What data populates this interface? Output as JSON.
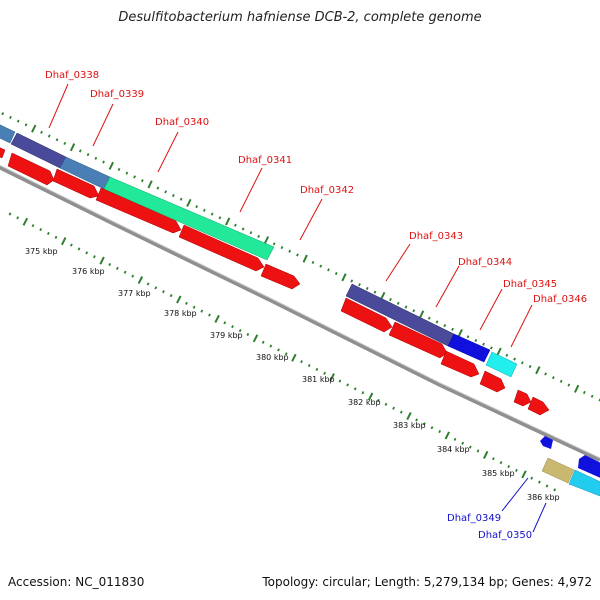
{
  "title": "Desulfitobacterium hafniense DCB-2, complete genome",
  "footer": {
    "accession": "Accession: NC_011830",
    "topology": "Topology: circular; Length: 5,279,134 bp; Genes: 4,972"
  },
  "colors": {
    "backbone": "#8c8c8c",
    "tick": "#2f7f2f",
    "red_gene": "#ee1111",
    "red_label": "#dd1111",
    "blue_label": "#1111cc"
  },
  "scale": {
    "tick_labels": [
      "375 kbp",
      "376 kbp",
      "377 kbp",
      "378 kbp",
      "379 kbp",
      "380 kbp",
      "381 kbp",
      "382 kbp",
      "383 kbp",
      "384 kbp",
      "385 kbp",
      "386 kbp"
    ]
  },
  "gene_labels": [
    {
      "id": "Dhaf_0338",
      "color": "red"
    },
    {
      "id": "Dhaf_0339",
      "color": "red"
    },
    {
      "id": "Dhaf_0340",
      "color": "red"
    },
    {
      "id": "Dhaf_0341",
      "color": "red"
    },
    {
      "id": "Dhaf_0342",
      "color": "red"
    },
    {
      "id": "Dhaf_0343",
      "color": "red"
    },
    {
      "id": "Dhaf_0344",
      "color": "red"
    },
    {
      "id": "Dhaf_0345",
      "color": "red"
    },
    {
      "id": "Dhaf_0346",
      "color": "red"
    },
    {
      "id": "Dhaf_0349",
      "color": "blue"
    },
    {
      "id": "Dhaf_0350",
      "color": "blue"
    }
  ],
  "track_colors": {
    "Dhaf_0338": "#4a7fb5",
    "Dhaf_0339": "#4a4a9a",
    "Dhaf_0340": "#4a7fb5",
    "Dhaf_0341": "#22e89a",
    "Dhaf_0343": "#4a4a9a",
    "Dhaf_0344": "#1111dd",
    "Dhaf_0345": "#22eeee",
    "Dhaf_0349": "#c8b870",
    "Dhaf_0350": "#22ccee"
  }
}
